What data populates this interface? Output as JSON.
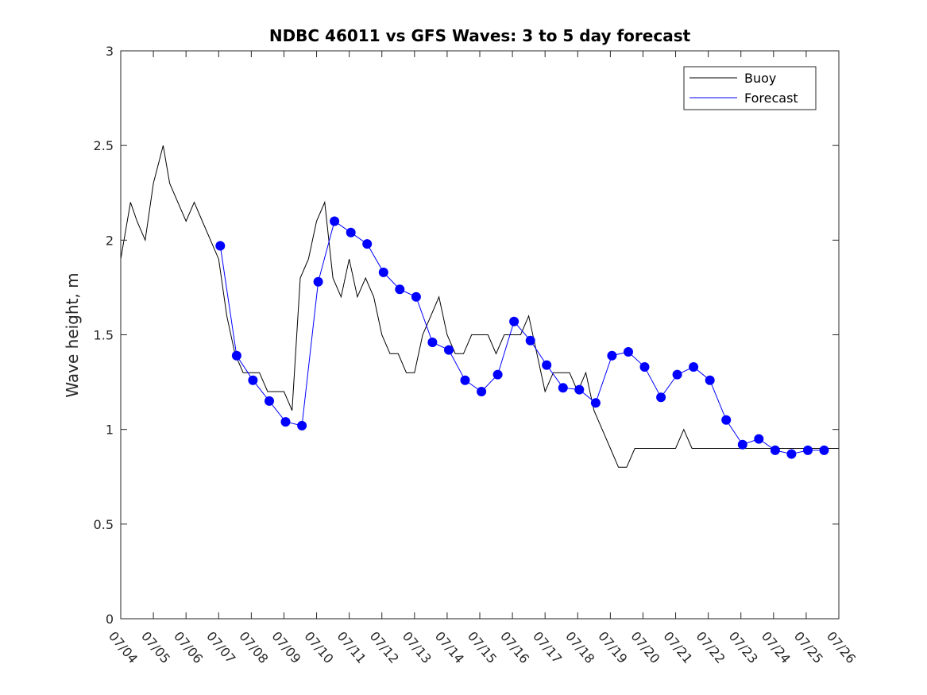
{
  "chart_data": {
    "type": "line",
    "title": "NDBC 46011 vs GFS Waves: 3 to 5 day forecast",
    "xlabel": "",
    "ylabel": "Wave height, m",
    "xlim": [
      "07/04",
      "07/26"
    ],
    "ylim": [
      0,
      3
    ],
    "yticks": [
      "0",
      "0.5",
      "1",
      "1.5",
      "2",
      "2.5",
      "3"
    ],
    "xticks": [
      "07/04",
      "07/05",
      "07/06",
      "07/07",
      "07/08",
      "07/09",
      "07/10",
      "07/11",
      "07/12",
      "07/13",
      "07/14",
      "07/15",
      "07/16",
      "07/17",
      "07/18",
      "07/19",
      "07/20",
      "07/21",
      "07/22",
      "07/23",
      "07/24",
      "07/25",
      "07/26"
    ],
    "grid": false,
    "legend": {
      "placement": "top-right",
      "entries": [
        "Buoy",
        "Forecast"
      ]
    },
    "series": [
      {
        "name": "Buoy",
        "color": "#000000",
        "x": [
          0.0,
          0.3,
          0.5,
          0.75,
          1.0,
          1.3,
          1.5,
          1.75,
          2.0,
          2.25,
          2.5,
          2.75,
          3.0,
          3.25,
          3.5,
          3.75,
          4.0,
          4.25,
          4.5,
          4.75,
          5.0,
          5.25,
          5.5,
          5.75,
          6.0,
          6.25,
          6.5,
          6.75,
          7.0,
          7.25,
          7.5,
          7.75,
          8.0,
          8.25,
          8.5,
          8.75,
          9.0,
          9.25,
          9.5,
          9.75,
          10.0,
          10.25,
          10.5,
          10.75,
          11.0,
          11.25,
          11.5,
          11.75,
          12.0,
          12.25,
          12.5,
          12.75,
          13.0,
          13.25,
          13.5,
          13.75,
          14.0,
          14.25,
          14.5,
          14.75,
          15.0,
          15.25,
          15.5,
          15.75,
          16.0,
          16.25,
          16.5,
          16.75,
          17.0,
          17.25,
          17.5,
          17.75,
          18.0,
          18.25,
          18.5,
          18.75,
          19.0,
          19.25,
          19.5,
          19.75,
          20.0,
          20.25,
          20.5,
          20.75,
          21.0,
          21.25,
          21.5,
          21.75,
          22.0
        ],
        "y": [
          1.9,
          2.2,
          2.1,
          2.0,
          2.3,
          2.5,
          2.3,
          2.2,
          2.1,
          2.2,
          2.1,
          2.0,
          1.9,
          1.6,
          1.4,
          1.3,
          1.3,
          1.3,
          1.2,
          1.2,
          1.2,
          1.1,
          1.8,
          1.9,
          2.1,
          2.2,
          1.8,
          1.7,
          1.9,
          1.7,
          1.8,
          1.7,
          1.5,
          1.4,
          1.4,
          1.3,
          1.3,
          1.5,
          1.6,
          1.7,
          1.5,
          1.4,
          1.4,
          1.5,
          1.5,
          1.5,
          1.4,
          1.5,
          1.5,
          1.5,
          1.6,
          1.4,
          1.2,
          1.3,
          1.3,
          1.3,
          1.2,
          1.3,
          1.1,
          1.0,
          0.9,
          0.8,
          0.8,
          0.9,
          0.9,
          0.9,
          0.9,
          0.9,
          0.9,
          1.0,
          0.9,
          0.9,
          0.9,
          0.9,
          0.9,
          0.9,
          0.9,
          0.9,
          0.9,
          0.9,
          0.9,
          0.9,
          0.9,
          0.9,
          0.9,
          0.9,
          0.9,
          0.9,
          0.9
        ]
      },
      {
        "name": "Forecast",
        "color": "#0000ff",
        "x": [
          3.05,
          3.55,
          4.05,
          4.55,
          5.05,
          5.55,
          6.05,
          6.55,
          7.05,
          7.55,
          8.05,
          8.55,
          9.05,
          9.55,
          10.05,
          10.55,
          11.05,
          11.55,
          12.05,
          12.55,
          13.05,
          13.55,
          14.05,
          14.55,
          15.05,
          15.55,
          16.05,
          16.55,
          17.05,
          17.55,
          18.05,
          18.55,
          19.05,
          19.55,
          20.05,
          20.55,
          21.05,
          21.55
        ],
        "y": [
          1.97,
          1.39,
          1.26,
          1.15,
          1.04,
          1.02,
          1.78,
          2.1,
          2.04,
          1.98,
          1.83,
          1.74,
          1.7,
          1.46,
          1.42,
          1.26,
          1.2,
          1.29,
          1.57,
          1.47,
          1.34,
          1.22,
          1.21,
          1.14,
          1.39,
          1.41,
          1.33,
          1.17,
          1.29,
          1.33,
          1.26,
          1.05,
          0.92,
          0.95,
          0.89,
          0.87,
          0.89,
          0.89
        ]
      }
    ]
  }
}
